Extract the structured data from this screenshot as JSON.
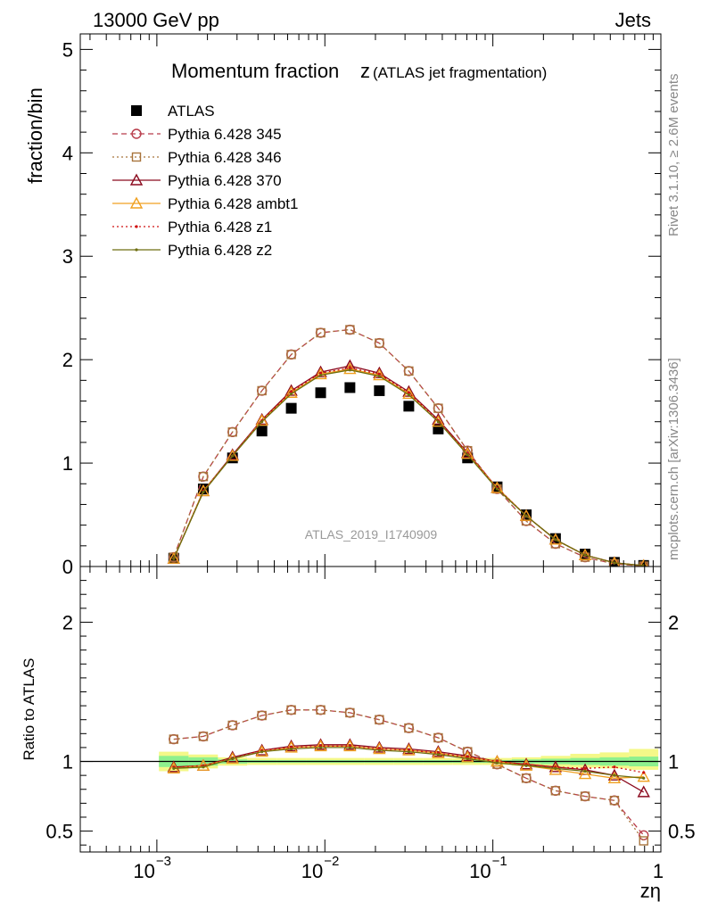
{
  "header": {
    "energy_label": "13000 GeV pp",
    "process_label": "Jets"
  },
  "side_labels": {
    "rivet": "Rivet 3.1.10, ≥ 2.6M events",
    "mcplots": "mcplots.cern.ch [arXiv:1306.3436]"
  },
  "chart_data": [
    {
      "panel": "main",
      "type": "line",
      "title": "Momentum fraction",
      "title_symbol": "z",
      "subtitle": "(ATLAS jet fragmentation)",
      "ylabel": "fraction/bin",
      "xlabel": "",
      "watermark": "ATLAS_2019_I1740909",
      "x_scale": "log",
      "xlim": [
        0.00035,
        1.0
      ],
      "ylim": [
        0,
        5.15
      ],
      "yticks": [
        0,
        1,
        2,
        3,
        4,
        5
      ],
      "ytick_labels": [
        "0",
        "1",
        "2",
        "3",
        "4",
        "5"
      ],
      "legend_position": "top-left",
      "x": [
        0.00126,
        0.00189,
        0.00282,
        0.00422,
        0.00631,
        0.00944,
        0.0141,
        0.0211,
        0.0316,
        0.0473,
        0.0707,
        0.106,
        0.158,
        0.236,
        0.354,
        0.529,
        0.79
      ],
      "series": [
        {
          "name": "ATLAS",
          "color": "#000000",
          "marker": "filled-square",
          "line": "none",
          "values": [
            0.08,
            0.75,
            1.05,
            1.31,
            1.53,
            1.68,
            1.73,
            1.7,
            1.55,
            1.33,
            1.05,
            0.77,
            0.5,
            0.27,
            0.12,
            0.04,
            0.01
          ]
        },
        {
          "name": "Pythia 6.428 345",
          "color": "#b83c4a",
          "marker": "open-circle",
          "line": "dashed",
          "values": [
            0.09,
            0.87,
            1.3,
            1.7,
            2.05,
            2.26,
            2.29,
            2.16,
            1.89,
            1.53,
            1.12,
            0.75,
            0.44,
            0.22,
            0.09,
            0.025,
            0.004
          ]
        },
        {
          "name": "Pythia 6.428 346",
          "color": "#a8743c",
          "marker": "open-square",
          "line": "dotted",
          "values": [
            0.09,
            0.87,
            1.3,
            1.7,
            2.05,
            2.26,
            2.29,
            2.16,
            1.89,
            1.53,
            1.12,
            0.75,
            0.44,
            0.22,
            0.09,
            0.025,
            0.004
          ]
        },
        {
          "name": "Pythia 6.428 370",
          "color": "#8b0a1e",
          "marker": "open-triangle",
          "line": "solid",
          "values": [
            0.076,
            0.73,
            1.08,
            1.42,
            1.7,
            1.88,
            1.94,
            1.87,
            1.69,
            1.42,
            1.1,
            0.76,
            0.49,
            0.26,
            0.11,
            0.036,
            0.008
          ]
        },
        {
          "name": "Pythia 6.428 ambt1",
          "color": "#f0a020",
          "marker": "open-triangle",
          "line": "solid",
          "values": [
            0.076,
            0.73,
            1.07,
            1.41,
            1.68,
            1.86,
            1.91,
            1.85,
            1.67,
            1.4,
            1.09,
            0.76,
            0.49,
            0.26,
            0.11,
            0.035,
            0.009
          ]
        },
        {
          "name": "Pythia 6.428 z1",
          "color": "#d01010",
          "marker": "small-dot",
          "line": "dotted",
          "values": [
            0.076,
            0.73,
            1.07,
            1.41,
            1.69,
            1.87,
            1.92,
            1.86,
            1.68,
            1.41,
            1.09,
            0.76,
            0.49,
            0.26,
            0.11,
            0.036,
            0.009
          ]
        },
        {
          "name": "Pythia 6.428 z2",
          "color": "#6e6e10",
          "marker": "small-dot",
          "line": "solid",
          "values": [
            0.076,
            0.72,
            1.07,
            1.4,
            1.67,
            1.85,
            1.9,
            1.84,
            1.66,
            1.4,
            1.08,
            0.75,
            0.49,
            0.26,
            0.11,
            0.035,
            0.009
          ]
        }
      ]
    },
    {
      "panel": "ratio",
      "type": "line",
      "ylabel": "Ratio to ATLAS",
      "xlabel": "zη",
      "x_scale": "log",
      "xlim": [
        0.00035,
        1.0
      ],
      "ylim": [
        0.35,
        2.4
      ],
      "yticks": [
        0.5,
        1,
        2
      ],
      "ytick_labels": [
        "0.5",
        "1",
        "2"
      ],
      "xticks": [
        0.001,
        0.01,
        0.1,
        1
      ],
      "xtick_labels": [
        {
          "base": "10",
          "exp": "−3"
        },
        {
          "base": "10",
          "exp": "−2"
        },
        {
          "base": "10",
          "exp": "−1"
        },
        {
          "base": "1",
          "exp": ""
        }
      ],
      "reference_line": 1.0,
      "bands": [
        {
          "name": "stat",
          "color": "#8ef08e",
          "lo": [
            0.96,
            0.97,
            0.985,
            0.99,
            0.99,
            0.99,
            0.99,
            0.99,
            0.99,
            0.99,
            0.99,
            0.99,
            0.985,
            0.98,
            0.975,
            0.97,
            0.965
          ],
          "hi": [
            1.04,
            1.03,
            1.015,
            1.01,
            1.01,
            1.01,
            1.01,
            1.01,
            1.01,
            1.01,
            1.01,
            1.01,
            1.015,
            1.02,
            1.025,
            1.03,
            1.035
          ]
        },
        {
          "name": "total",
          "color": "#f4f888",
          "lo": [
            0.93,
            0.95,
            0.97,
            0.975,
            0.975,
            0.975,
            0.975,
            0.975,
            0.975,
            0.975,
            0.975,
            0.975,
            0.97,
            0.96,
            0.955,
            0.95,
            0.94
          ],
          "hi": [
            1.07,
            1.05,
            1.03,
            1.025,
            1.025,
            1.025,
            1.025,
            1.025,
            1.025,
            1.025,
            1.025,
            1.025,
            1.03,
            1.04,
            1.055,
            1.065,
            1.09
          ]
        }
      ],
      "x": [
        0.00126,
        0.00189,
        0.00282,
        0.00422,
        0.00631,
        0.00944,
        0.0141,
        0.0211,
        0.0316,
        0.0473,
        0.0707,
        0.106,
        0.158,
        0.236,
        0.354,
        0.529,
        0.79
      ],
      "series": [
        {
          "name": "Pythia 6.428 345",
          "color": "#b83c4a",
          "marker": "open-circle",
          "line": "dashed",
          "values": [
            1.16,
            1.18,
            1.26,
            1.33,
            1.37,
            1.37,
            1.35,
            1.3,
            1.24,
            1.17,
            1.07,
            0.98,
            0.88,
            0.79,
            0.75,
            0.72,
            0.47
          ]
        },
        {
          "name": "Pythia 6.428 346",
          "color": "#a8743c",
          "marker": "open-square",
          "line": "dotted",
          "values": [
            1.16,
            1.18,
            1.26,
            1.33,
            1.37,
            1.37,
            1.35,
            1.3,
            1.24,
            1.17,
            1.07,
            0.98,
            0.88,
            0.79,
            0.75,
            0.72,
            0.43
          ]
        },
        {
          "name": "Pythia 6.428 370",
          "color": "#8b0a1e",
          "marker": "open-triangle",
          "line": "solid",
          "values": [
            0.96,
            0.97,
            1.03,
            1.08,
            1.11,
            1.12,
            1.12,
            1.1,
            1.09,
            1.07,
            1.04,
            1.0,
            0.98,
            0.96,
            0.94,
            0.9,
            0.78
          ]
        },
        {
          "name": "Pythia 6.428 ambt1",
          "color": "#f0a020",
          "marker": "open-triangle",
          "line": "solid",
          "values": [
            0.95,
            0.97,
            1.02,
            1.07,
            1.1,
            1.11,
            1.11,
            1.09,
            1.08,
            1.06,
            1.03,
            1.0,
            0.97,
            0.94,
            0.91,
            0.88,
            0.89
          ]
        },
        {
          "name": "Pythia 6.428 z1",
          "color": "#d01010",
          "marker": "small-dot",
          "line": "dotted",
          "values": [
            0.96,
            0.97,
            1.02,
            1.08,
            1.1,
            1.11,
            1.11,
            1.09,
            1.08,
            1.06,
            1.03,
            1.0,
            0.98,
            0.96,
            0.95,
            0.96,
            0.92
          ]
        },
        {
          "name": "Pythia 6.428 z2",
          "color": "#6e6e10",
          "marker": "small-dot",
          "line": "solid",
          "values": [
            0.95,
            0.96,
            1.02,
            1.07,
            1.09,
            1.1,
            1.1,
            1.08,
            1.07,
            1.05,
            1.02,
            0.99,
            0.97,
            0.95,
            0.93,
            0.9,
            0.88
          ]
        }
      ]
    }
  ]
}
